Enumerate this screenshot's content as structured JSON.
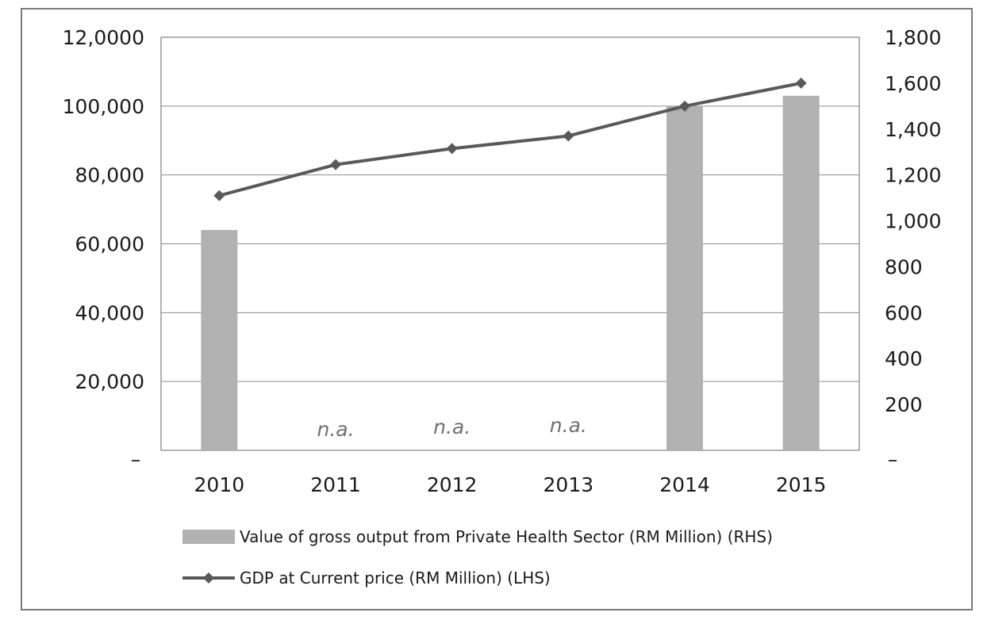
{
  "chart_data": {
    "type": "bar+line",
    "categories": [
      "2010",
      "2011",
      "2012",
      "2013",
      "2014",
      "2015"
    ],
    "bars": {
      "name": "Value of gross output from Private Health Sector (RM Million) (RHS)",
      "values": [
        64000,
        null,
        null,
        null,
        100000,
        103000
      ],
      "missing_label": "n.a.",
      "color": "#b1b1b1"
    },
    "line": {
      "name": "GDP at Current price (RM Million) (LHS)",
      "values": [
        1110,
        1245,
        1315,
        1370,
        1500,
        1600
      ],
      "color": "#595959",
      "marker": "diamond"
    },
    "left_axis": {
      "min": 0,
      "max": 120000,
      "ticks": [
        0,
        20000,
        40000,
        60000,
        80000,
        100000,
        120000
      ],
      "tick_labels": [
        "–",
        "20,000",
        "40,000",
        "60,000",
        "80,000",
        "100,000",
        "12,0000"
      ]
    },
    "right_axis": {
      "min": 0,
      "max": 1800,
      "ticks": [
        0,
        200,
        400,
        600,
        800,
        1000,
        1200,
        1400,
        1600,
        1800
      ],
      "tick_labels": [
        "–",
        "200",
        "400",
        "600",
        "800",
        "1,000",
        "1,200",
        "1,400",
        "1,600",
        "1,800"
      ]
    },
    "grid": true,
    "legend_position": "bottom"
  }
}
